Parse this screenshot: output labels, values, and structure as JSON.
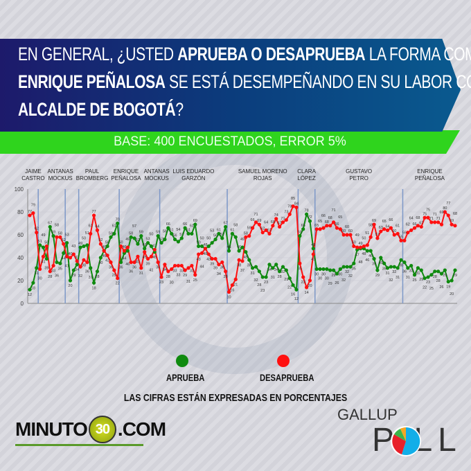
{
  "header": {
    "line1": {
      "a": "EN GENERAL, ¿USTED ",
      "b": "APRUEBA O DESAPRUEBA",
      "c": " LA FORMA COMO"
    },
    "line2": {
      "b": "ENRIQUE PEÑALOSA",
      "c": " SE ESTÁ DESEMPEÑANDO EN SU LABOR COMO"
    },
    "line3": {
      "b": "ALCALDE DE BOGOTÁ",
      "c": "?"
    },
    "base": "BASE: 400 ENCUESTADOS, ERROR 5%"
  },
  "colors": {
    "approve": "#0f8a0f",
    "disapprove": "#ff1010",
    "banner": "#0b3c7c",
    "base_bar": "#2fd41d"
  },
  "chart_data": {
    "type": "line",
    "ylim": [
      0,
      100
    ],
    "yticks": [
      0,
      20,
      40,
      60,
      80,
      100
    ],
    "grid": true,
    "series_names": [
      "APRUEBA",
      "DESAPRUEBA"
    ],
    "segments": [
      {
        "mayor": [
          "JAIME",
          "CASTRO"
        ],
        "approve": [
          12,
          18,
          31
        ],
        "disapprove": [
          77,
          79,
          62
        ]
      },
      {
        "mayor": [
          "ANTANAS",
          "MOCKUS"
        ],
        "approve": [
          51,
          49,
          39,
          67,
          59,
          36,
          35,
          44
        ],
        "disapprove": [
          30,
          41,
          50,
          28,
          33,
          58,
          58,
          52
        ]
      },
      {
        "mayor": [
          "PAUL",
          "BROMBERG"
        ],
        "approve": [
          53,
          20,
          29,
          34
        ],
        "disapprove": [
          41,
          40,
          43,
          37
        ]
      },
      {
        "mayor": [
          "ENRIQUE",
          "PEÑALOSA"
        ],
        "approve": [
          49,
          50,
          51,
          31,
          18,
          28,
          40,
          46,
          50,
          58,
          61,
          70
        ],
        "disapprove": [
          32,
          38,
          36,
          61,
          77,
          64,
          52,
          46,
          42,
          36,
          29,
          22
        ]
      },
      {
        "mayor": [
          "ANTANAS",
          "MOCKUS"
        ],
        "approve": [
          36,
          44,
          46,
          58,
          57,
          52,
          59,
          48,
          53,
          50,
          45,
          59
        ],
        "disapprove": [
          50,
          46,
          49,
          36,
          36,
          41,
          31,
          45,
          39,
          41,
          47,
          36
        ]
      },
      {
        "mayor": [
          "LUIS EDUARDO",
          "GARZÓN"
        ],
        "approve": [
          53,
          56,
          66,
          61,
          56,
          54,
          57,
          66,
          61,
          61,
          69,
          50,
          50,
          48,
          50,
          53,
          56,
          61,
          57,
          67
        ],
        "disapprove": [
          23,
          34,
          28,
          30,
          33,
          33,
          33,
          29,
          31,
          33,
          25,
          43,
          44,
          48,
          43,
          39,
          39,
          34,
          36,
          28
        ]
      },
      {
        "mayor": [
          "SAMUEL MORENO",
          "ROJAS"
        ],
        "approve": [
          46,
          61,
          58,
          46,
          49,
          45,
          38,
          31,
          32,
          28,
          23,
          23,
          34,
          31,
          34,
          28,
          32,
          29,
          22,
          16,
          12
        ],
        "disapprove": [
          10,
          16,
          21,
          38,
          37,
          58,
          59,
          66,
          71,
          69,
          62,
          64,
          61,
          68,
          74,
          67,
          71,
          73,
          78,
          85,
          84
        ]
      },
      {
        "mayor": [
          "CLARA",
          "LÓPEZ"
        ],
        "approve": [
          59,
          65,
          78,
          72,
          48
        ],
        "disapprove": [
          35,
          23,
          14,
          20,
          43
        ]
      },
      {
        "mayor": [
          "GUSTAVO",
          "PETRO"
        ],
        "approve": [
          30,
          30,
          30,
          30,
          29,
          29,
          26,
          30,
          32,
          32,
          32,
          35,
          47,
          48,
          48,
          46,
          46,
          39,
          29,
          40,
          35,
          31,
          32,
          32,
          31,
          38
        ],
        "disapprove": [
          65,
          65,
          66,
          68,
          68,
          71,
          66,
          65,
          60,
          60,
          60,
          50,
          49,
          49,
          50,
          51,
          58,
          69,
          57,
          63,
          65,
          64,
          66,
          60,
          61,
          55
        ]
      },
      {
        "mayor": [
          "ENRIQUE",
          "PEÑALOSA"
        ],
        "approve": [
          36,
          31,
          33,
          25,
          31,
          29,
          22,
          23,
          25,
          28,
          28,
          26,
          29,
          19,
          20,
          29
        ],
        "disapprove": [
          55,
          62,
          64,
          66,
          68,
          67,
          75,
          75,
          71,
          71,
          71,
          69,
          80,
          77,
          69,
          68
        ]
      }
    ]
  },
  "legend": {
    "approve": "APRUEBA",
    "disapprove": "DESAPRUEBA",
    "note": "LAS CIFRAS ESTÁN EXPRESADAS EN PORCENTAJES"
  },
  "logos": {
    "minuto_a": "MINUTO",
    "minuto_num": "30",
    "minuto_b": ".COM",
    "gallup": "GALLUP",
    "poll": "P LL"
  }
}
